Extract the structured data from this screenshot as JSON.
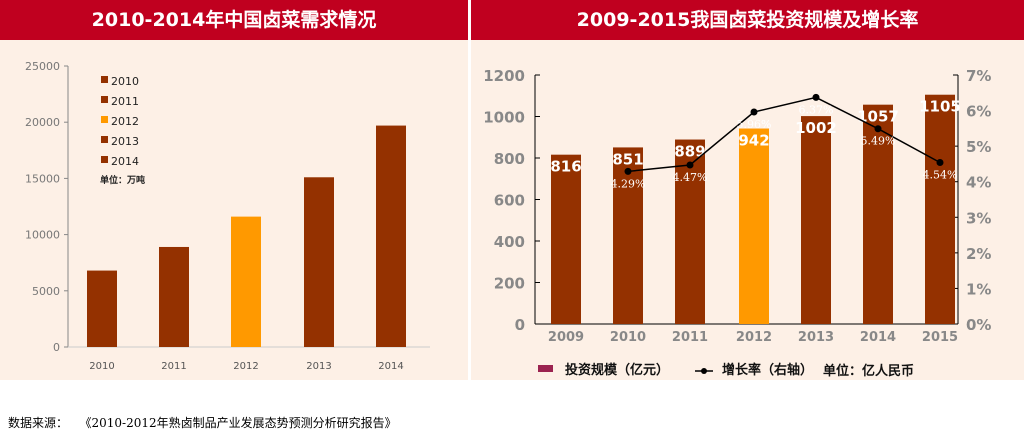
{
  "source_label": "数据来源：",
  "source_text": "《2010-2012年熟卤制品产业发展态势预测分析研究报告》",
  "chart_data": [
    {
      "type": "bar",
      "title": "2010-2014年中国卤菜需求情况",
      "categories": [
        "2010",
        "2011",
        "2012",
        "2013",
        "2014"
      ],
      "values": [
        6800,
        8900,
        11600,
        15100,
        19700
      ],
      "ylim": [
        0,
        25000
      ],
      "yticks": [
        0,
        5000,
        10000,
        15000,
        20000,
        25000
      ],
      "unit": "单位：万吨",
      "legend": [
        "2010",
        "2011",
        "2012",
        "2013",
        "2014"
      ],
      "legend_position": "top-left",
      "colors": [
        "#943100",
        "#943100",
        "#ff9900",
        "#943100",
        "#943100"
      ]
    },
    {
      "type": "bar+line",
      "title": "2009-2015我国卤菜投资规模及增长率",
      "categories": [
        "2009",
        "2010",
        "2011",
        "2012",
        "2013",
        "2014",
        "2015"
      ],
      "series": [
        {
          "name": "投资规模（亿元）",
          "values": [
            816,
            851,
            889,
            942,
            1002,
            1057,
            1105
          ],
          "labels": [
            "816",
            "851",
            "889",
            "942",
            "1002",
            "1057",
            "1105"
          ]
        },
        {
          "name": "增长率（右轴）",
          "values": [
            null,
            4.29,
            4.47,
            5.96,
            6.37,
            5.49,
            4.54
          ],
          "labels": [
            "",
            "4.29%",
            "4.47%",
            "5.96%",
            "6.37%",
            "5.49%",
            "4.54%"
          ]
        }
      ],
      "ylim": [
        0,
        1200
      ],
      "yticks": [
        0,
        200,
        400,
        600,
        800,
        1000,
        1200
      ],
      "y2lim": [
        0,
        7
      ],
      "y2ticks": [
        "0%",
        "1%",
        "2%",
        "3%",
        "4%",
        "5%",
        "6%",
        "7%"
      ],
      "unit": "单位：亿人民币",
      "legend_position": "bottom",
      "colors": [
        "#943100",
        "#943100",
        "#943100",
        "#ff9900",
        "#943100",
        "#943100",
        "#943100"
      ],
      "legend_swatch": "#9b2350"
    }
  ]
}
